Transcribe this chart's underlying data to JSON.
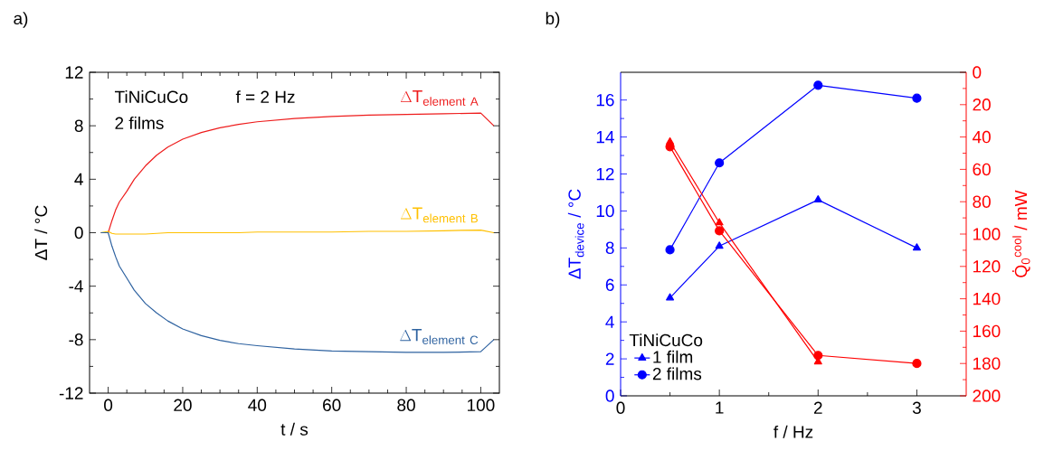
{
  "chart_data": [
    {
      "type": "line",
      "xlabel": "t / s",
      "ylabel": "ΔT / °C",
      "xlim": [
        -5,
        105
      ],
      "ylim": [
        -12,
        12
      ],
      "xticks": [
        0,
        20,
        40,
        60,
        80,
        100
      ],
      "yticks": [
        -12,
        -8,
        -4,
        0,
        4,
        8,
        12
      ],
      "marker": "none",
      "line_style": "solid",
      "annotations": [
        "a)",
        "TiNiCuCo",
        "f = 2 Hz",
        "2 films"
      ],
      "x": [
        -2,
        0,
        1,
        2,
        3,
        5,
        7,
        10,
        13,
        16,
        20,
        25,
        30,
        35,
        40,
        50,
        60,
        70,
        80,
        90,
        100,
        103.5
      ],
      "series": [
        {
          "name": "\\Delta\\mathrm{T}_{\\mathrm{element\\ A}}",
          "color": "#ee1c1c",
          "values": [
            0,
            0,
            0.9,
            1.7,
            2.3,
            3.1,
            4.0,
            5.0,
            5.8,
            6.4,
            7.0,
            7.5,
            7.85,
            8.1,
            8.3,
            8.55,
            8.7,
            8.8,
            8.85,
            8.9,
            8.95,
            8.0
          ]
        },
        {
          "name": "\\Delta\\mathrm{T}_{\\mathrm{element\\ B}}",
          "color": "#ffc000",
          "values": [
            0,
            0.1,
            -0.05,
            -0.1,
            -0.1,
            -0.1,
            -0.1,
            -0.1,
            -0.05,
            0,
            0,
            0,
            0,
            0,
            0.05,
            0.05,
            0.05,
            0.1,
            0.1,
            0.15,
            0.2,
            0
          ]
        },
        {
          "name": "\\Delta\\mathrm{T}_{\\mathrm{element\\ C}}",
          "color": "#2e62a0",
          "values": [
            0,
            0,
            -1.0,
            -1.8,
            -2.5,
            -3.4,
            -4.3,
            -5.3,
            -6.0,
            -6.6,
            -7.2,
            -7.7,
            -8.05,
            -8.3,
            -8.45,
            -8.7,
            -8.85,
            -8.9,
            -8.95,
            -8.95,
            -8.9,
            -8.0
          ]
        }
      ]
    },
    {
      "type": "line",
      "xlabel": "f / Hz",
      "ylabel": "ΔT$_{device}$ / °C",
      "y2label": "Q̇$_{0}$$^{cool}$ / mW",
      "legend_title": "TiNiCuCo",
      "legend": "bottom left",
      "line_style": "solid",
      "xlim": [
        0,
        3.5
      ],
      "ylim": [
        0,
        17.5
      ],
      "y2lim": [
        200,
        0
      ],
      "xticks": [
        0,
        1,
        2,
        3
      ],
      "yticks": [
        0,
        2,
        4,
        6,
        8,
        10,
        12,
        14,
        16
      ],
      "y2ticks": [
        0,
        20,
        40,
        60,
        80,
        100,
        120,
        140,
        160,
        180,
        200
      ],
      "annotations": [
        "b)"
      ],
      "x": [
        0.5,
        1,
        2,
        3
      ],
      "series": [
        {
          "name": "1 film",
          "color": "#0000ff",
          "marker": "triangle",
          "values": [
            5.3,
            8.1,
            10.6,
            8.0
          ]
        },
        {
          "name": "2 films",
          "color": "#0000ff",
          "marker": "circle",
          "values": [
            7.9,
            12.6,
            16.8,
            16.1
          ]
        },
        {
          "color": "#ff0000",
          "marker": "triangle",
          "axis": "y2",
          "values": [
            43,
            93,
            179,
            null
          ]
        },
        {
          "color": "#ff0000",
          "marker": "circle",
          "axis": "y2",
          "values": [
            46,
            98,
            175,
            180
          ]
        }
      ]
    }
  ]
}
